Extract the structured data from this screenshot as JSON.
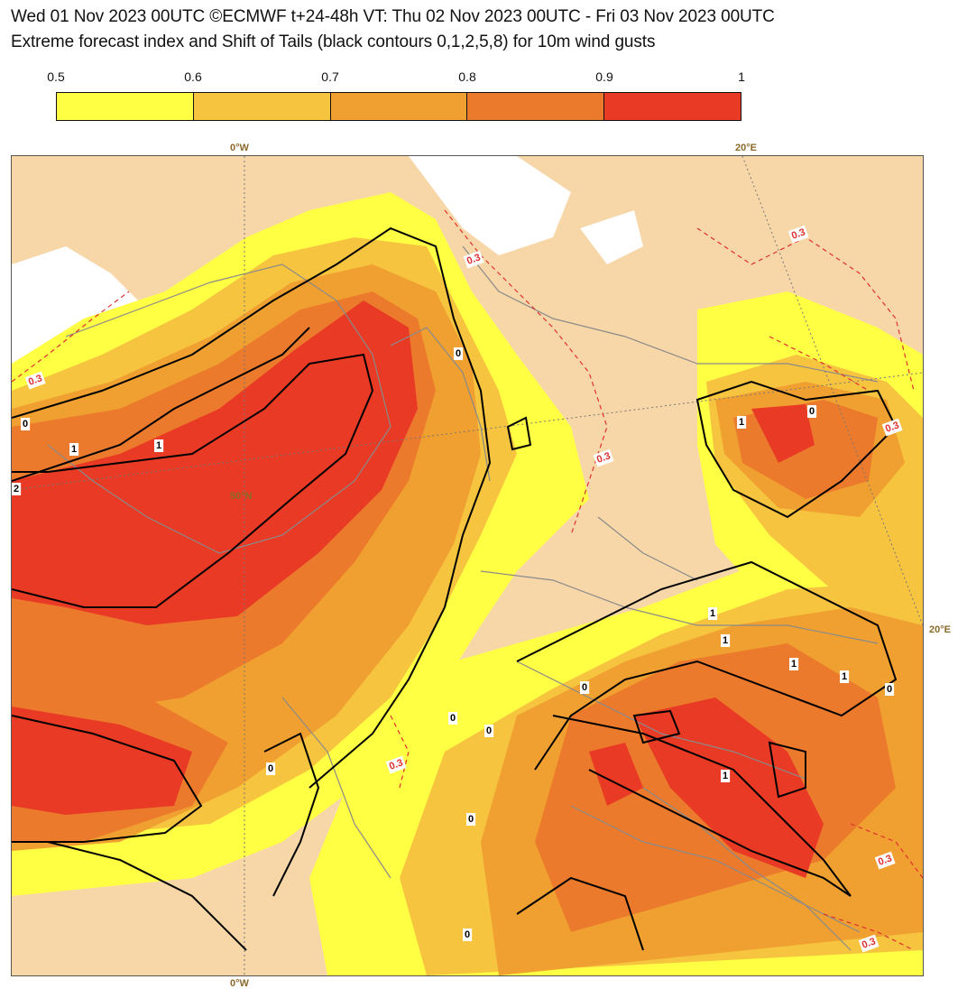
{
  "header": {
    "line1": "Wed 01 Nov 2023 00UTC ©ECMWF t+24-48h  VT: Thu 02 Nov 2023 00UTC - Fri 03 Nov 2023 00UTC",
    "line2": "Extreme forecast index and Shift of Tails (black contours 0,1,2,5,8) for 10m wind gusts"
  },
  "legend": {
    "labels": [
      "0.5",
      "0.6",
      "0.7",
      "0.8",
      "0.9",
      "1"
    ],
    "colors": [
      "#ffff44",
      "#f7c440",
      "#f0a030",
      "#ec7a2c",
      "#e83a24"
    ]
  },
  "graticule": {
    "top_left": "0°W",
    "top_right": "20°E",
    "right": "20°E",
    "bottom": "0°W",
    "lat": "50°N"
  },
  "contour_labels": {
    "sot": [
      "0",
      "1",
      "1",
      "2",
      "0",
      "1",
      "0",
      "1",
      "1",
      "1",
      "1",
      "0",
      "0",
      "0",
      "0",
      "0",
      "1",
      "0",
      "0"
    ],
    "efi": [
      "0.3",
      "0.3",
      "0.3",
      "0.3",
      "0.3",
      "0.3",
      "0.3",
      "0.3"
    ]
  },
  "colors": {
    "land_base": "#f7d7a8",
    "sea_white": "#ffffff",
    "contour_black": "#000000",
    "efi_dashed": "#e03030",
    "coastline": "#8a8a8a"
  }
}
